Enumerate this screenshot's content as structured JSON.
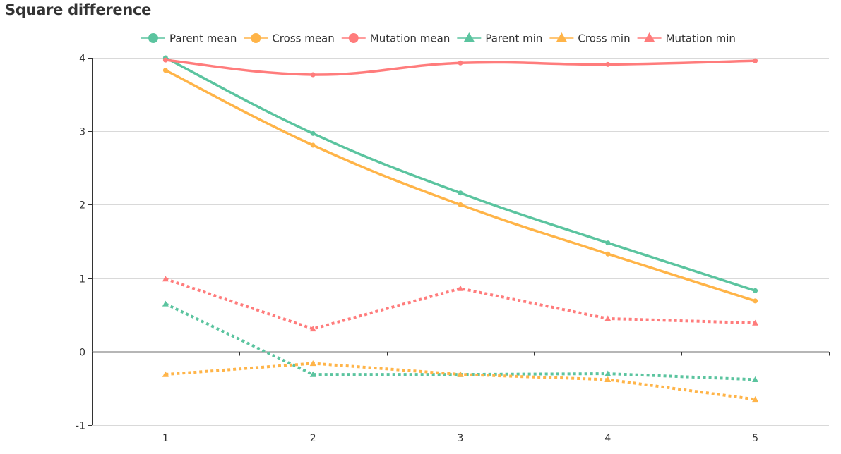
{
  "chart_data": {
    "type": "line",
    "title": "Square difference",
    "xlabel": "",
    "ylabel": "",
    "categories": [
      "1",
      "2",
      "3",
      "4",
      "5"
    ],
    "ylim": [
      -1,
      4
    ],
    "yticks": [
      "-1",
      "0",
      "1",
      "2",
      "3",
      "4"
    ],
    "grid": true,
    "legend_position": "top",
    "series": [
      {
        "name": "Parent mean",
        "color": "#5bc49f",
        "style": "solid",
        "symbol": "circle",
        "smooth": true,
        "values": [
          4.0,
          2.97,
          2.16,
          1.48,
          0.83
        ]
      },
      {
        "name": "Cross mean",
        "color": "#ffb448",
        "style": "solid",
        "symbol": "circle",
        "smooth": true,
        "values": [
          3.83,
          2.81,
          2.0,
          1.33,
          0.69
        ]
      },
      {
        "name": "Mutation mean",
        "color": "#ff7c7c",
        "style": "solid",
        "symbol": "circle",
        "smooth": true,
        "values": [
          3.97,
          3.77,
          3.93,
          3.91,
          3.96
        ]
      },
      {
        "name": "Parent min",
        "color": "#5bc49f",
        "style": "dotted",
        "symbol": "triangle",
        "smooth": false,
        "values": [
          0.65,
          -0.31,
          -0.31,
          -0.3,
          -0.38
        ]
      },
      {
        "name": "Cross min",
        "color": "#ffb448",
        "style": "dotted",
        "symbol": "triangle",
        "smooth": false,
        "values": [
          -0.31,
          -0.16,
          -0.31,
          -0.38,
          -0.65
        ]
      },
      {
        "name": "Mutation min",
        "color": "#ff7c7c",
        "style": "dotted",
        "symbol": "triangle",
        "smooth": false,
        "values": [
          0.99,
          0.31,
          0.86,
          0.45,
          0.39
        ]
      }
    ]
  }
}
